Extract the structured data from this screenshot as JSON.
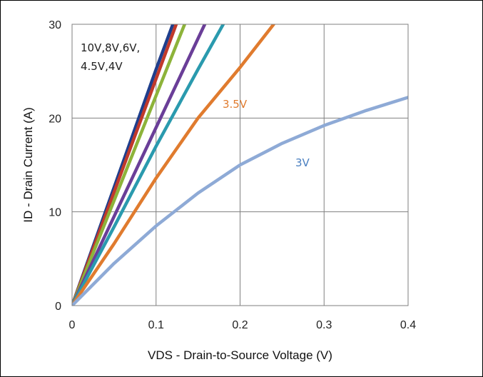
{
  "chart_data": {
    "type": "line",
    "title": "",
    "xlabel": "VDS - Drain-to-Source Voltage (V)",
    "ylabel": "ID - Drain Current (A)",
    "xlim": [
      0,
      0.4
    ],
    "ylim": [
      0,
      30
    ],
    "xticks": [
      "0",
      "0.1",
      "0.2",
      "0.3",
      "0.4"
    ],
    "yticks": [
      "0",
      "10",
      "20",
      "30"
    ],
    "grid": true,
    "annotations": [
      {
        "text": "10V,8V,6V,",
        "color": "#222222"
      },
      {
        "text": "4.5V,4V",
        "color": "#222222"
      },
      {
        "text": "3.5V",
        "color": "#E07B2E"
      },
      {
        "text": "3V",
        "color": "#4A7FC0"
      }
    ],
    "series": [
      {
        "color": "#1F3E8C",
        "x": [
          0,
          0.05,
          0.1,
          0.12
        ],
        "y": [
          0,
          12.6,
          25.2,
          30
        ]
      },
      {
        "color": "#C0392B",
        "x": [
          0,
          0.05,
          0.1,
          0.124
        ],
        "y": [
          0,
          12.1,
          24.2,
          30
        ]
      },
      {
        "color": "#8DB33A",
        "x": [
          0,
          0.05,
          0.1,
          0.134
        ],
        "y": [
          0,
          11.2,
          22.4,
          30
        ]
      },
      {
        "color": "#6A3E98",
        "x": [
          0,
          0.05,
          0.1,
          0.158
        ],
        "y": [
          0,
          9.5,
          19.0,
          30
        ]
      },
      {
        "color": "#2A9AAE",
        "x": [
          0,
          0.05,
          0.1,
          0.15,
          0.18
        ],
        "y": [
          0,
          8.4,
          17.0,
          25.2,
          30
        ]
      },
      {
        "color": "#E07B2E",
        "x": [
          0,
          0.05,
          0.1,
          0.15,
          0.2,
          0.24
        ],
        "y": [
          0,
          6.6,
          13.6,
          20.0,
          25.4,
          30
        ]
      },
      {
        "color": "#8EAAD6",
        "x": [
          0,
          0.05,
          0.1,
          0.15,
          0.2,
          0.25,
          0.3,
          0.35,
          0.4
        ],
        "y": [
          0,
          4.5,
          8.5,
          12.0,
          15.0,
          17.3,
          19.2,
          20.8,
          22.2
        ]
      }
    ]
  }
}
